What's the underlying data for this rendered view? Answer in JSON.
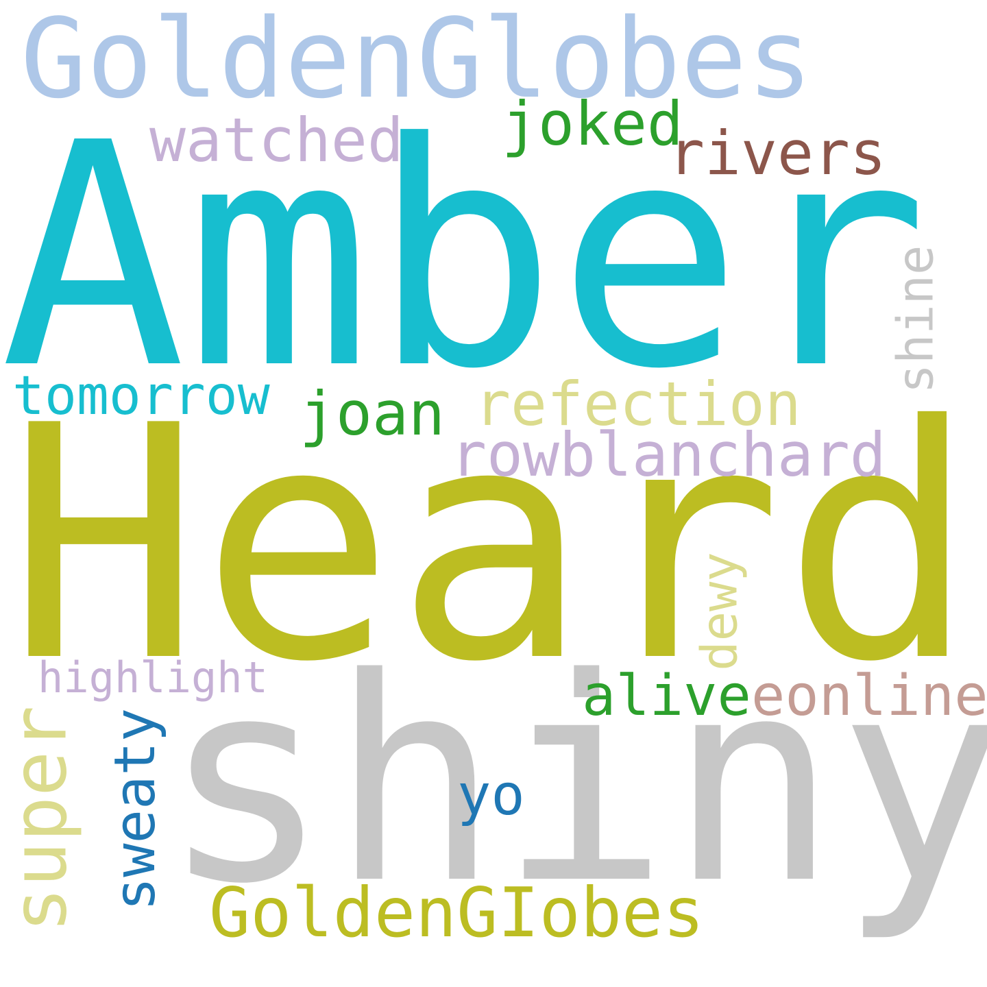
{
  "words": {
    "goldenglobes": {
      "text": "GoldenGlobes",
      "color": "#aec7e8"
    },
    "amber": {
      "text": "Amber",
      "color": "#17becf"
    },
    "watched": {
      "text": "watched",
      "color": "#c5b0d5"
    },
    "joked": {
      "text": "joked",
      "color": "#2ca02c"
    },
    "rivers": {
      "text": "rivers",
      "color": "#8c564b"
    },
    "shine": {
      "text": "shine",
      "color": "#c7c7c7"
    },
    "tomorrow": {
      "text": "tomorrow",
      "color": "#17becf"
    },
    "joan": {
      "text": "joan",
      "color": "#2ca02c"
    },
    "refection": {
      "text": "refection",
      "color": "#dbdb8d"
    },
    "rowblanchard": {
      "text": "rowblanchard",
      "color": "#c5b0d5"
    },
    "heard": {
      "text": "Heard",
      "color": "#bcbd22"
    },
    "dewy": {
      "text": "dewy",
      "color": "#dbdb8d"
    },
    "highlight": {
      "text": "highlight",
      "color": "#c5b0d5"
    },
    "alive": {
      "text": "alive",
      "color": "#2ca02c"
    },
    "eonline": {
      "text": "eonline",
      "color": "#c49c94"
    },
    "super": {
      "text": "super",
      "color": "#dbdb8d"
    },
    "sweaty": {
      "text": "sweaty",
      "color": "#1f77b4"
    },
    "shiny": {
      "text": "shiny",
      "color": "#c7c7c7"
    },
    "yo": {
      "text": "yo",
      "color": "#1f77b4"
    },
    "goldengiobes": {
      "text": "GoldenGIobes",
      "color": "#bcbd22"
    }
  }
}
